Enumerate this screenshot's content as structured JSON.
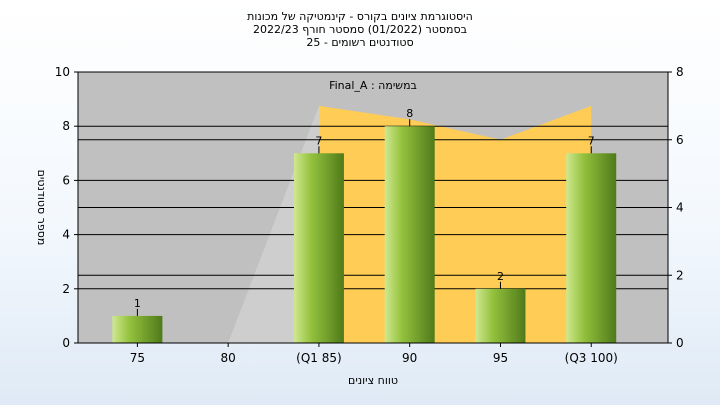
{
  "title_lines": [
    "היסטוגרמת ציונים בקורס - קינמטיקה של מכונות",
    "בסמסטר  (01/2022)  סמסטר חורף 2022/23",
    "סטודנטים רשומים - 25"
  ],
  "annotation": "Final_A : במשימה",
  "chart_data": {
    "type": "bar",
    "categories": [
      "75",
      "80",
      "(Q1 85)",
      "90",
      "95",
      "(Q3 100)"
    ],
    "values": [
      1,
      0,
      7,
      8,
      2,
      7
    ],
    "data_labels": [
      "1",
      "",
      "7",
      "8",
      "2",
      "7"
    ],
    "area_values": [
      0,
      0,
      7,
      6.6,
      6,
      7
    ],
    "xlabel": "טווח ציונים",
    "ylabel": "מספר סטודנטים",
    "ylim": [
      0,
      10
    ],
    "y2lim": [
      0,
      8
    ],
    "yticks": [
      "0",
      "2",
      "4",
      "6",
      "8",
      "10"
    ],
    "y2ticks": [
      "0",
      "2",
      "4",
      "6",
      "8"
    ],
    "grid": true,
    "colors": {
      "plot_bg": "#c0c0c0",
      "area_fill": "#ffcc55",
      "area_grey": "#cfcfcf",
      "bar_light": "#cfe890",
      "bar_mid": "#93c13c",
      "bar_dark": "#4f7a1b"
    }
  }
}
